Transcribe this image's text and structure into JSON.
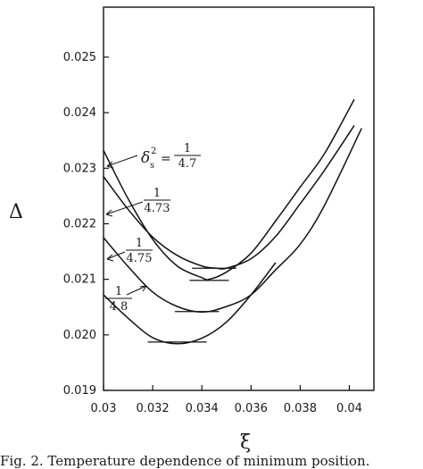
{
  "chart_data": {
    "type": "line",
    "xlabel": "ξ",
    "ylabel": "Δ",
    "xlim": [
      0.03,
      0.041
    ],
    "ylim": [
      0.019,
      0.0259
    ],
    "xticks": [
      "0.03",
      "0.032",
      "0.034",
      "0.036",
      "0.038",
      "0.04"
    ],
    "yticks": [
      "0.019",
      "0.020",
      "0.021",
      "0.022",
      "0.023",
      "0.024",
      "0.025"
    ],
    "grid": false,
    "legend": "none",
    "series": [
      {
        "name": "1/4.7",
        "x": [
          0.03,
          0.031,
          0.032,
          0.033,
          0.034,
          0.0346,
          0.035,
          0.036,
          0.037,
          0.038,
          0.039,
          0.0402
        ],
        "y": [
          0.02285,
          0.02226,
          0.02176,
          0.02143,
          0.02124,
          0.0212,
          0.0212,
          0.02137,
          0.02177,
          0.02236,
          0.02297,
          0.02377
        ]
      },
      {
        "name": "1/4.73",
        "x": [
          0.03,
          0.031,
          0.032,
          0.033,
          0.034,
          0.0343,
          0.035,
          0.036,
          0.037,
          0.038,
          0.039,
          0.0402
        ],
        "y": [
          0.02332,
          0.02245,
          0.02172,
          0.02124,
          0.02103,
          0.021,
          0.02113,
          0.02147,
          0.02205,
          0.02266,
          0.02327,
          0.02424
        ]
      },
      {
        "name": "1/4.75",
        "x": [
          0.03,
          0.031,
          0.032,
          0.033,
          0.034,
          0.035,
          0.036,
          0.037,
          0.038,
          0.039,
          0.0405
        ],
        "y": [
          0.02175,
          0.02123,
          0.02077,
          0.02051,
          0.02041,
          0.02051,
          0.02072,
          0.02117,
          0.02163,
          0.02234,
          0.02372
        ]
      },
      {
        "name": "1/4.8",
        "x": [
          0.03,
          0.031,
          0.032,
          0.033,
          0.034,
          0.035,
          0.036,
          0.037
        ],
        "y": [
          0.02072,
          0.0203,
          0.01995,
          0.01984,
          0.01994,
          0.02023,
          0.02072,
          0.0213
        ]
      }
    ],
    "min_markers": [
      {
        "x": 0.0345,
        "y": 0.0212,
        "half_width": 0.0009
      },
      {
        "x": 0.0343,
        "y": 0.02098,
        "half_width": 0.0008
      },
      {
        "x": 0.0338,
        "y": 0.02042,
        "half_width": 0.0009
      },
      {
        "x": 0.033,
        "y": 0.01987,
        "half_width": 0.0012
      }
    ],
    "annotations": {
      "delta_symbol": "δ",
      "delta_sub": "s",
      "delta_sup": "2",
      "equals": "=",
      "numerator": "1",
      "denominators": [
        "4.7",
        "4.73",
        "4.75",
        "4.8"
      ]
    }
  },
  "caption": "Fig. 2.  Temperature dependence of minimum position."
}
